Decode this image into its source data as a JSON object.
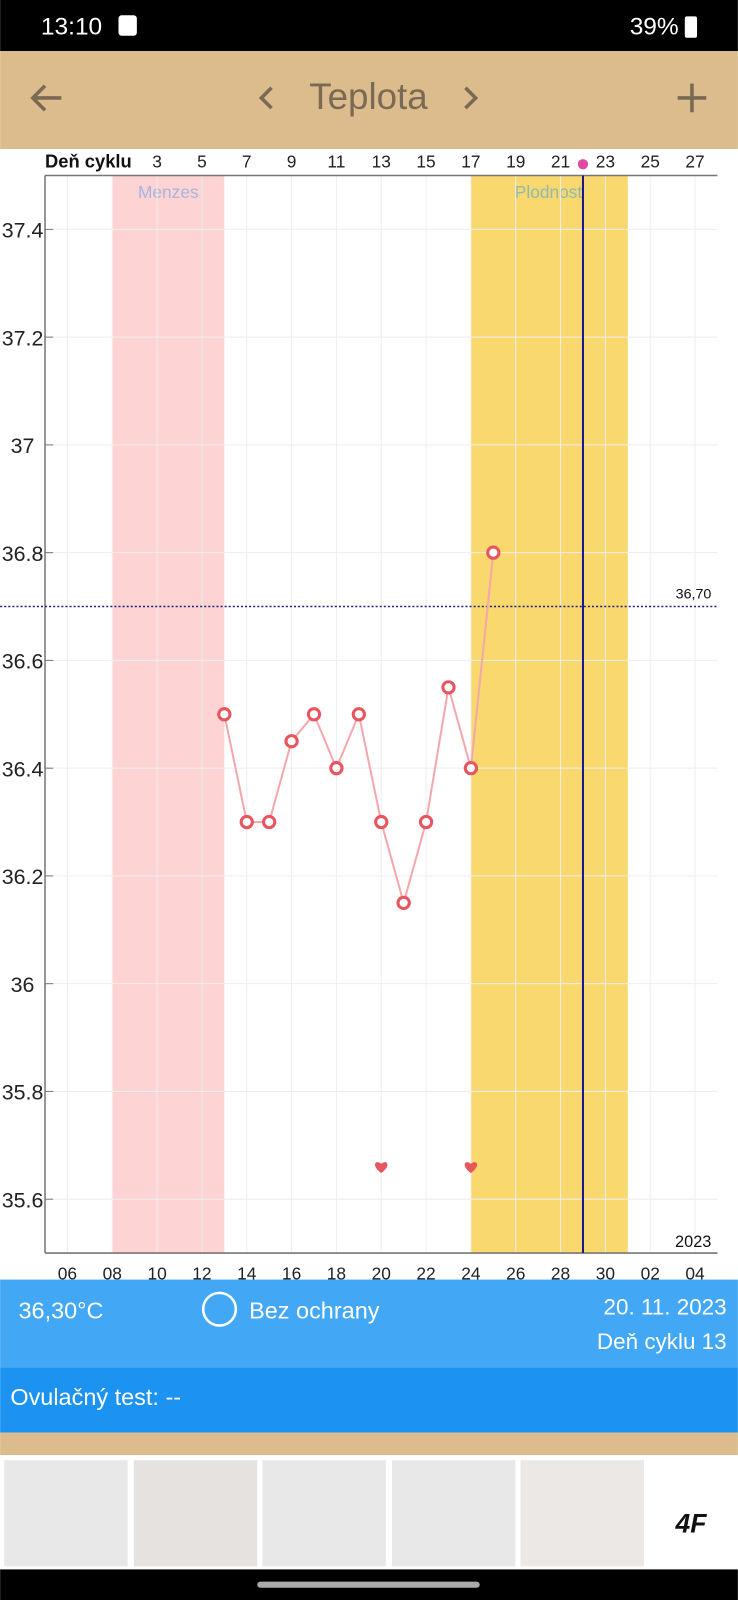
{
  "status_bar": {
    "time": "13:10",
    "battery": "39%"
  },
  "toolbar": {
    "title": "Teplota"
  },
  "chart_data": {
    "type": "line",
    "x_label_top": "Deň cyklu",
    "year": "2023",
    "x": [
      6,
      7,
      8,
      9,
      10,
      11,
      12,
      13,
      14,
      15,
      16,
      17,
      18
    ],
    "series": [
      {
        "name": "Teplota",
        "color": "#e8555f",
        "values": [
          36.5,
          36.3,
          36.3,
          36.45,
          36.5,
          36.4,
          36.5,
          36.3,
          36.15,
          36.3,
          36.55,
          36.4,
          36.8
        ]
      }
    ],
    "xlim": [
      -2,
      28
    ],
    "ylim": [
      35.5,
      37.5
    ],
    "xticks_top": [
      3,
      5,
      7,
      9,
      11,
      13,
      15,
      17,
      19,
      21,
      23,
      25,
      27
    ],
    "xticks": [
      {
        "value": -1,
        "label": "06"
      },
      {
        "value": 1,
        "label": "08"
      },
      {
        "value": 3,
        "label": "10"
      },
      {
        "value": 5,
        "label": "12"
      },
      {
        "value": 7,
        "label": "14"
      },
      {
        "value": 9,
        "label": "16"
      },
      {
        "value": 11,
        "label": "18"
      },
      {
        "value": 13,
        "label": "20"
      },
      {
        "value": 15,
        "label": "22"
      },
      {
        "value": 17,
        "label": "24"
      },
      {
        "value": 19,
        "label": "26"
      },
      {
        "value": 21,
        "label": "28"
      },
      {
        "value": 23,
        "label": "30"
      },
      {
        "value": 25,
        "label": "02"
      },
      {
        "value": 27,
        "label": "04"
      }
    ],
    "yticks": [
      35.6,
      35.8,
      36,
      36.2,
      36.4,
      36.6,
      36.8,
      37,
      37.2,
      37.4
    ],
    "bands": [
      {
        "label": "Menzes",
        "range": [
          1,
          6
        ],
        "color": "#fdd3d3",
        "label_color": "#a8b4e0"
      },
      {
        "label": "Plodnosť",
        "range": [
          17,
          24
        ],
        "color": "#f9d86e",
        "label_color": "#8fb8b0"
      }
    ],
    "reference": {
      "value": 36.7,
      "label": "36,70"
    },
    "today": 22,
    "hearts": {
      "x": [
        13,
        17
      ],
      "y": 35.66
    },
    "grid": true
  },
  "info": {
    "temperature": "36,30°C",
    "protection": "Bez ochrany",
    "date": "20. 11. 2023",
    "cycle_day": "Deň cyklu 13",
    "ovulation_test": "Ovulačný test: --"
  },
  "ad": {
    "brand": "4F"
  }
}
